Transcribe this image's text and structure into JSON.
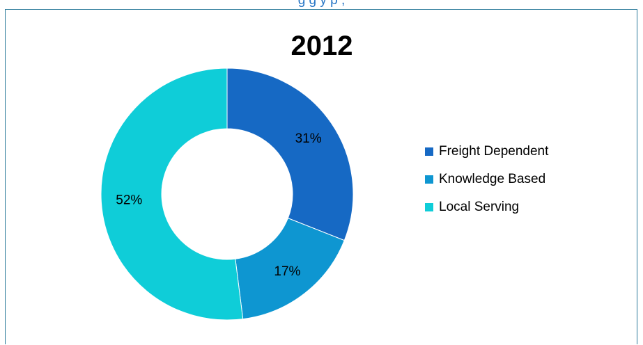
{
  "caption": "g                g                          y  p ,",
  "chart_data": {
    "type": "pie",
    "title": "2012",
    "donut": true,
    "legend_position": "right",
    "slices": [
      {
        "label": "Freight Dependent",
        "value": 31,
        "display": "31%",
        "color": "#1669c4"
      },
      {
        "label": "Knowledge Based",
        "value": 17,
        "display": "17%",
        "color": "#0e96d1"
      },
      {
        "label": "Local Serving",
        "value": 52,
        "display": "52%",
        "color": "#0fcdd8"
      }
    ]
  }
}
